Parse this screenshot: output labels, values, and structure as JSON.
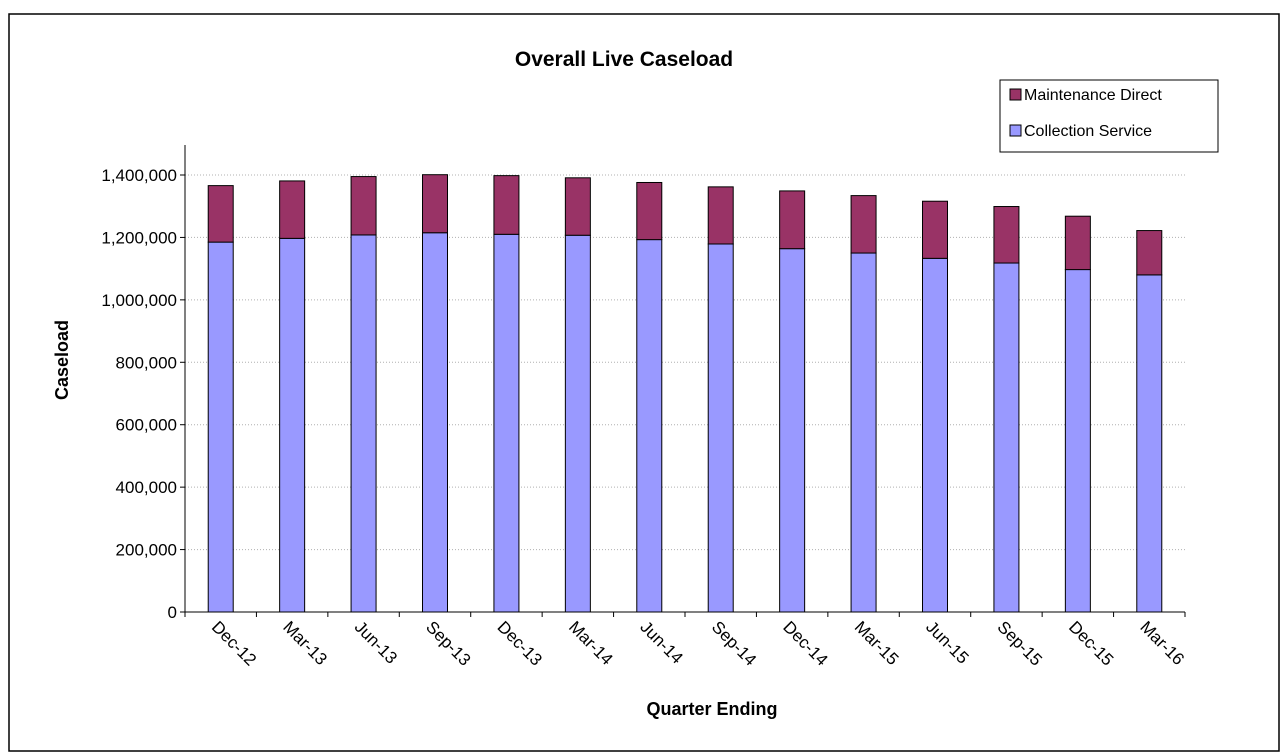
{
  "chart_data": {
    "type": "bar",
    "stacked": true,
    "title": "Overall Live Caseload",
    "xlabel": "Quarter Ending",
    "ylabel": "Caseload",
    "ylim": [
      0,
      1400000
    ],
    "yticks": [
      0,
      200000,
      400000,
      600000,
      800000,
      1000000,
      1200000,
      1400000
    ],
    "ytick_labels": [
      "0",
      "200,000",
      "400,000",
      "600,000",
      "800,000",
      "1,000,000",
      "1,200,000",
      "1,400,000"
    ],
    "grid": true,
    "legend_position": "top-right",
    "categories": [
      "Dec-12",
      "Mar-13",
      "Jun-13",
      "Sep-13",
      "Dec-13",
      "Mar-14",
      "Jun-14",
      "Sep-14",
      "Dec-14",
      "Mar-15",
      "Jun-15",
      "Sep-15",
      "Dec-15",
      "Mar-16"
    ],
    "series": [
      {
        "name": "Collection Service",
        "color": "#9999ff",
        "values": [
          1185000,
          1197000,
          1208000,
          1215000,
          1210000,
          1207000,
          1193000,
          1179000,
          1164000,
          1150000,
          1133000,
          1118000,
          1097000,
          1080000
        ]
      },
      {
        "name": "Maintenance Direct",
        "color": "#993366",
        "values": [
          181000,
          184000,
          187000,
          186000,
          188000,
          184000,
          183000,
          183000,
          185000,
          184000,
          183000,
          181000,
          171000,
          142000
        ]
      }
    ],
    "legend_order": [
      "Maintenance Direct",
      "Collection Service"
    ]
  }
}
